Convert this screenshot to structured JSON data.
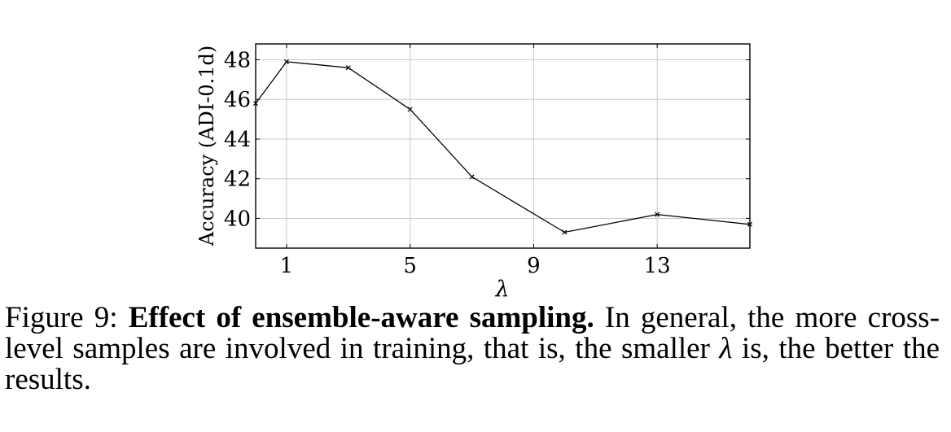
{
  "chart_data": {
    "type": "line",
    "xlabel": "λ",
    "ylabel": "Accuracy (ADI-0.1d)",
    "x": [
      0,
      1,
      3,
      5,
      7,
      10,
      13,
      16
    ],
    "series": [
      {
        "values": [
          45.8,
          47.9,
          47.6,
          45.5,
          42.1,
          39.3,
          40.2,
          39.7
        ]
      }
    ],
    "xticks": [
      1,
      5,
      9,
      13
    ],
    "yticks": [
      40,
      42,
      44,
      46,
      48
    ],
    "xlim": [
      0,
      16
    ],
    "ylim": [
      38.5,
      48.8
    ],
    "grid": true,
    "colors": {
      "line": "#000000",
      "grid": "#c8c8c8",
      "frame": "#000000"
    }
  },
  "caption": {
    "prefix": "Figure 9:",
    "bold": "Effect of ensemble-aware sampling.",
    "text1": "In general, the more cross-level samples are involved in training, that is, the smaller",
    "symbol": "λ",
    "text2": "is, the better the results."
  }
}
